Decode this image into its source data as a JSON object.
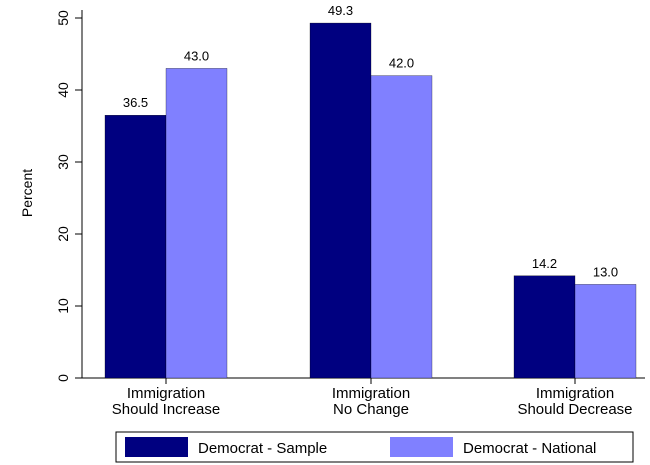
{
  "chart_data": {
    "type": "bar",
    "title": "",
    "xlabel": "",
    "ylabel": "Percent",
    "ylim": [
      0,
      50
    ],
    "yticks": [
      0,
      10,
      20,
      30,
      40,
      50
    ],
    "categories": [
      [
        "Immigration",
        "Should Increase"
      ],
      [
        "Immigration",
        "No Change"
      ],
      [
        "Immigration",
        "Should Decrease"
      ]
    ],
    "series": [
      {
        "name": "Democrat - Sample",
        "color": "#000080",
        "values": [
          36.5,
          49.3,
          14.2
        ],
        "labels": [
          "36.5",
          "49.3",
          "14.2"
        ]
      },
      {
        "name": "Democrat - National",
        "color": "#8080ff",
        "values": [
          43.0,
          42.0,
          13.0
        ],
        "labels": [
          "43.0",
          "42.0",
          "13.0"
        ]
      }
    ],
    "grid": false,
    "legend_position": "bottom"
  }
}
